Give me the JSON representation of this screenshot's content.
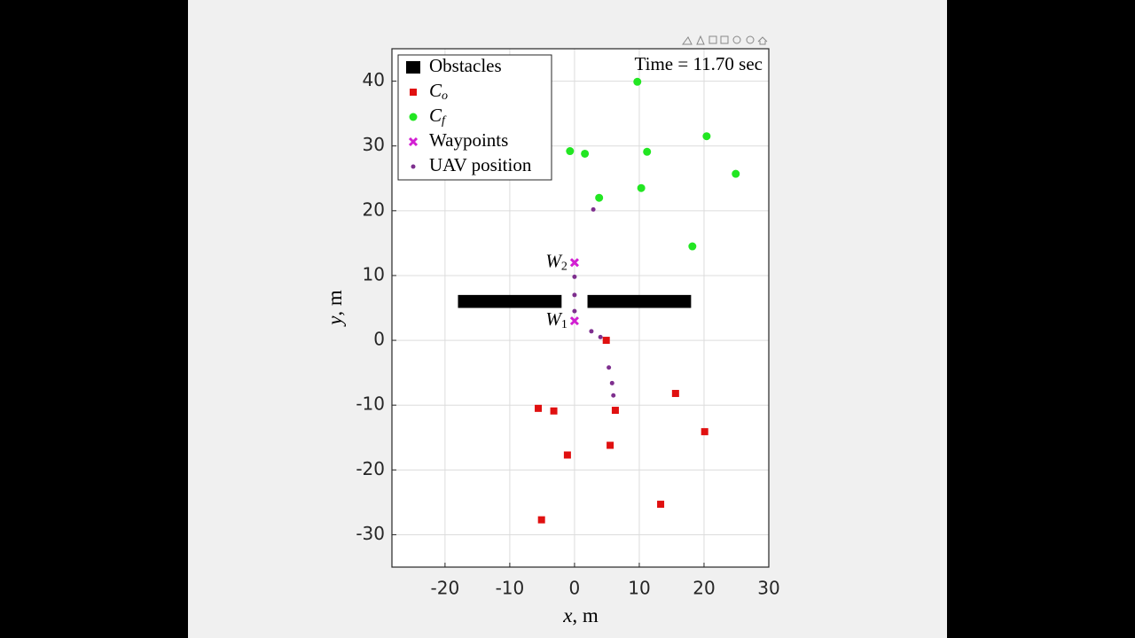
{
  "chart_data": {
    "type": "scatter",
    "annotation": "Time = 11.70 sec",
    "xlabel": {
      "var": "x",
      "text": ", m"
    },
    "ylabel": {
      "var": "y",
      "text": ", m"
    },
    "xlim": [
      -28.2,
      30
    ],
    "ylim": [
      -35,
      45
    ],
    "xticks": [
      -20,
      -10,
      0,
      10,
      20,
      30
    ],
    "yticks": [
      -30,
      -20,
      -10,
      0,
      10,
      20,
      30,
      40
    ],
    "grid": true,
    "legend": "upper left",
    "series": [
      {
        "name": "Obstacles",
        "marker": "rect",
        "color": "#000000",
        "rects": [
          {
            "x": [
              -18,
              -2
            ],
            "y": [
              5,
              7
            ]
          },
          {
            "x": [
              2,
              18
            ],
            "y": [
              5,
              7
            ]
          }
        ]
      },
      {
        "name": "C",
        "subscript": "o",
        "marker": "square",
        "color": "#e01010",
        "x": [
          4.9,
          -5.6,
          -3.2,
          6.3,
          15.6,
          20.1,
          -1.1,
          5.5,
          13.3,
          -5.1
        ],
        "values": [
          0,
          -10.5,
          -10.9,
          -10.8,
          -8.2,
          -14.1,
          -17.7,
          -16.2,
          -25.3,
          -27.7
        ]
      },
      {
        "name": "C",
        "subscript": "f",
        "marker": "circle",
        "color": "#22e622",
        "x": [
          9.7,
          -0.7,
          1.6,
          11.2,
          20.4,
          24.9,
          10.3,
          3.8,
          18.2
        ],
        "values": [
          39.9,
          29.2,
          28.8,
          29.1,
          31.5,
          25.7,
          23.5,
          22.0,
          14.5
        ]
      },
      {
        "name": "Waypoints",
        "marker": "x",
        "color": "#d21fd2",
        "x": [
          0,
          0
        ],
        "values": [
          12,
          3
        ],
        "point_labels": [
          {
            "text": "W",
            "subscript": "2"
          },
          {
            "text": "W",
            "subscript": "1"
          }
        ]
      },
      {
        "name": "UAV position",
        "marker": "dot",
        "color": "#7e2f8e",
        "x": [
          2.9,
          0,
          0,
          0,
          2.6,
          4,
          5.3,
          5.8,
          6
        ],
        "values": [
          20.2,
          9.8,
          7,
          4.5,
          1.4,
          0.5,
          -4.2,
          -6.6,
          -8.5
        ]
      }
    ]
  }
}
